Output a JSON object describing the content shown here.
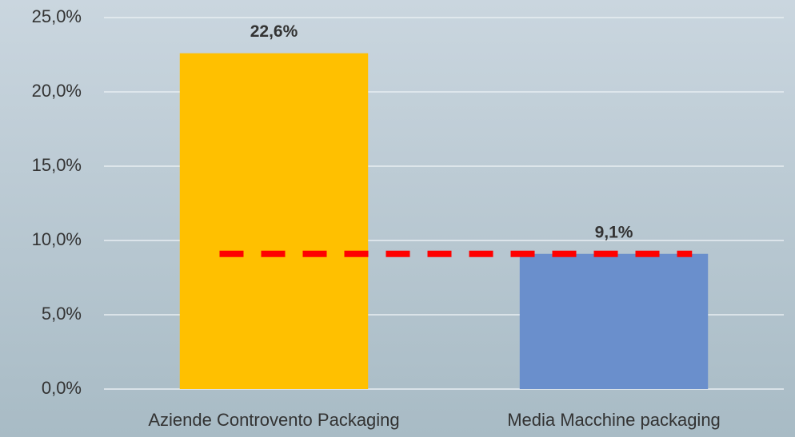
{
  "chart_data": {
    "type": "bar",
    "categories": [
      "Aziende Controvento Packaging",
      "Media Macchine packaging"
    ],
    "values": [
      22.6,
      9.1
    ],
    "value_labels": [
      "22,6%",
      "9,1%"
    ],
    "colors": [
      "#ffc000",
      "#6a8fcc"
    ],
    "reference_line": {
      "value": 9.1,
      "color": "#ff0000"
    },
    "ylim": [
      0,
      25
    ],
    "yticks": [
      {
        "value": 0,
        "label": "0,0%"
      },
      {
        "value": 5,
        "label": "5,0%"
      },
      {
        "value": 10,
        "label": "10,0%"
      },
      {
        "value": 15,
        "label": "15,0%"
      },
      {
        "value": 20,
        "label": "20,0%"
      },
      {
        "value": 25,
        "label": "25,0%"
      }
    ],
    "grid": true
  }
}
